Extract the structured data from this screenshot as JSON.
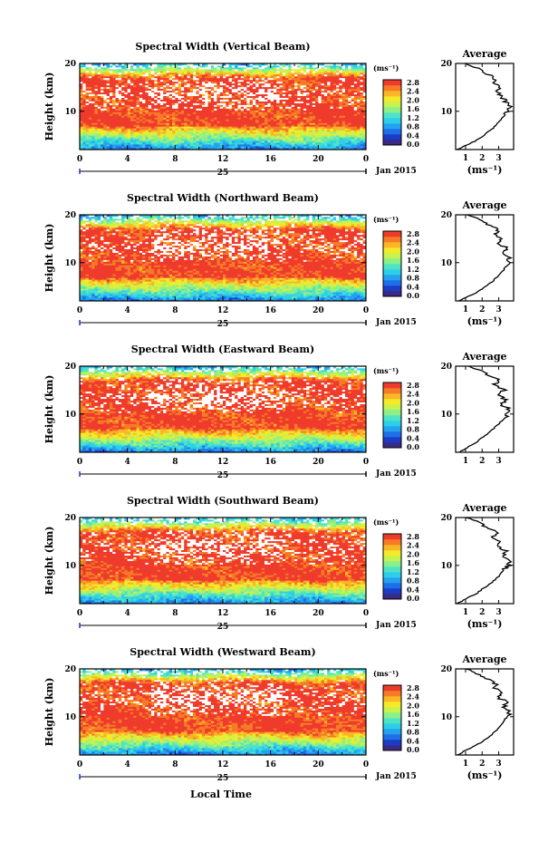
{
  "chart_data": [
    {
      "type": "heatmap",
      "title": "Spectral Width (Vertical Beam)",
      "ylabel": "Height (km)",
      "ylim": [
        2,
        20
      ],
      "yticks": [
        10,
        20
      ],
      "x": [
        0,
        4,
        8,
        12,
        16,
        20,
        0
      ],
      "xlim": [
        0,
        24
      ],
      "date_day": "25",
      "date_label": "Jan 2015",
      "colorbar": {
        "unit": "(ms⁻¹)",
        "ticks": [
          "2.8",
          "2.4",
          "2.0",
          "1.6",
          "1.2",
          "0.8",
          "0.4",
          "0.0"
        ]
      },
      "average": {
        "title": "Average",
        "xlabel": "(ms⁻¹)",
        "xticks": [
          1,
          2,
          3
        ],
        "xlim": [
          0.4,
          3.9
        ],
        "height": [
          2,
          3,
          4,
          5,
          6,
          7,
          8,
          9,
          10,
          11,
          12,
          13,
          14,
          15,
          16,
          17,
          18,
          19,
          20
        ],
        "value": [
          0.5,
          1.1,
          1.7,
          2.1,
          2.5,
          2.8,
          3.1,
          3.3,
          3.5,
          3.7,
          3.4,
          3.2,
          2.9,
          3.1,
          2.6,
          2.8,
          2.2,
          1.7,
          1.0
        ]
      }
    },
    {
      "type": "heatmap",
      "title": "Spectral Width (Northward Beam)",
      "ylabel": "Height (km)",
      "ylim": [
        2,
        20
      ],
      "yticks": [
        10,
        20
      ],
      "x": [
        0,
        4,
        8,
        12,
        16,
        20,
        0
      ],
      "xlim": [
        0,
        24
      ],
      "date_day": "25",
      "date_label": "Jan 2015",
      "colorbar": {
        "unit": "(ms⁻¹)",
        "ticks": [
          "2.8",
          "2.4",
          "2.0",
          "1.6",
          "1.2",
          "0.8",
          "0.4",
          "0.0"
        ]
      },
      "average": {
        "title": "Average",
        "xlabel": "(ms⁻¹)",
        "xticks": [
          1,
          2,
          3
        ],
        "xlim": [
          0.4,
          3.9
        ],
        "height": [
          2,
          3,
          4,
          5,
          6,
          7,
          8,
          9,
          10,
          11,
          12,
          13,
          14,
          15,
          16,
          17,
          18,
          19,
          20
        ],
        "value": [
          0.6,
          1.2,
          1.8,
          2.2,
          2.6,
          2.9,
          3.2,
          3.4,
          3.6,
          3.7,
          3.3,
          3.5,
          3.0,
          3.2,
          2.8,
          2.9,
          2.3,
          1.8,
          1.1
        ]
      }
    },
    {
      "type": "heatmap",
      "title": "Spectral Width (Eastward Beam)",
      "ylabel": "Height (km)",
      "ylim": [
        2,
        20
      ],
      "yticks": [
        10,
        20
      ],
      "x": [
        0,
        4,
        8,
        12,
        16,
        20,
        0
      ],
      "xlim": [
        0,
        24
      ],
      "date_day": "25",
      "date_label": "Jan 2015",
      "colorbar": {
        "unit": "(ms⁻¹)",
        "ticks": [
          "2.8",
          "2.4",
          "2.0",
          "1.6",
          "1.2",
          "0.8",
          "0.4",
          "0.0"
        ]
      },
      "average": {
        "title": "Average",
        "xlabel": "",
        "xticks": [
          1,
          2,
          3
        ],
        "xlim": [
          0.4,
          3.9
        ],
        "height": [
          2,
          3,
          4,
          5,
          6,
          7,
          8,
          9,
          10,
          11,
          12,
          13,
          14,
          15,
          16,
          17,
          18,
          19,
          20
        ],
        "value": [
          0.6,
          1.1,
          1.6,
          2.0,
          2.4,
          2.7,
          3.0,
          3.3,
          3.5,
          3.6,
          3.2,
          3.4,
          2.9,
          3.3,
          2.7,
          3.0,
          2.4,
          1.9,
          1.2
        ]
      }
    },
    {
      "type": "heatmap",
      "title": "Spectral Width (Southward Beam)",
      "ylabel": "Height (km)",
      "ylim": [
        2,
        20
      ],
      "yticks": [
        10,
        20
      ],
      "x": [
        0,
        4,
        8,
        12,
        16,
        20,
        0
      ],
      "xlim": [
        0,
        24
      ],
      "date_day": "25",
      "date_label": "Jan 2015",
      "colorbar": {
        "unit": "(ms⁻¹)",
        "ticks": [
          "2.8",
          "2.4",
          "2.0",
          "1.6",
          "1.2",
          "0.8",
          "0.4",
          "0.0"
        ]
      },
      "average": {
        "title": "Average",
        "xlabel": "(ms⁻¹)",
        "xticks": [
          1,
          2,
          3
        ],
        "xlim": [
          0.4,
          3.9
        ],
        "height": [
          2,
          3,
          4,
          5,
          6,
          7,
          8,
          9,
          10,
          11,
          12,
          13,
          14,
          15,
          16,
          17,
          18,
          19,
          20
        ],
        "value": [
          0.5,
          1.0,
          1.6,
          2.0,
          2.4,
          2.8,
          3.1,
          3.3,
          3.6,
          3.7,
          3.3,
          3.5,
          2.9,
          3.1,
          2.6,
          2.9,
          2.2,
          1.8,
          1.0
        ]
      }
    },
    {
      "type": "heatmap",
      "title": "Spectral Width (Westward Beam)",
      "ylabel": "Height (km)",
      "ylim": [
        2,
        20
      ],
      "yticks": [
        10,
        20
      ],
      "x": [
        0,
        4,
        8,
        12,
        16,
        20,
        0
      ],
      "xlim": [
        0,
        24
      ],
      "date_day": "25",
      "date_label": "Jan 2015",
      "colorbar": {
        "unit": "(ms⁻¹)",
        "ticks": [
          "2.8",
          "2.4",
          "2.0",
          "1.6",
          "1.2",
          "0.8",
          "0.4",
          "0.0"
        ]
      },
      "average": {
        "title": "Average",
        "xlabel": "(ms⁻¹)",
        "xticks": [
          1,
          2,
          3
        ],
        "xlim": [
          0.4,
          3.9
        ],
        "height": [
          2,
          3,
          4,
          5,
          6,
          7,
          8,
          9,
          10,
          11,
          12,
          13,
          14,
          15,
          16,
          17,
          18,
          19,
          20
        ],
        "value": [
          0.5,
          1.0,
          1.6,
          2.1,
          2.5,
          2.8,
          3.1,
          3.3,
          3.5,
          3.7,
          3.3,
          3.5,
          3.0,
          3.2,
          2.7,
          2.8,
          2.3,
          1.7,
          1.0
        ]
      }
    }
  ],
  "footer": {
    "xlabel": "Local Time"
  },
  "colors": {
    "scale": [
      "#3b2a83",
      "#1a3cc6",
      "#1f6fe8",
      "#24a2f0",
      "#2ccfe8",
      "#4fe3c6",
      "#8cf08a",
      "#c8f24c",
      "#f4ea2a",
      "#fbb625",
      "#f77b26",
      "#ef3b2c"
    ],
    "nodata": "#ffffff"
  }
}
